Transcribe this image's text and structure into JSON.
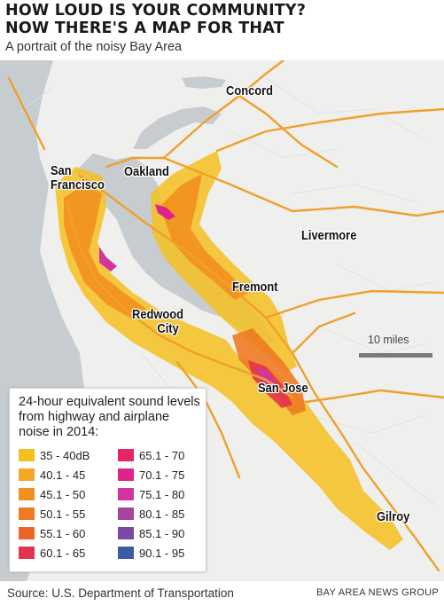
{
  "title_line1": "HOW LOUD IS YOUR COMMUNITY?",
  "title_line2": "NOW THERE'S A MAP FOR THAT",
  "subtitle": "A portrait of the noisy Bay Area",
  "cities": {
    "concord": "Concord",
    "san_francisco_1": "San",
    "san_francisco_2": "Francisco",
    "oakland": "Oakland",
    "livermore": "Livermore",
    "fremont": "Fremont",
    "redwood_city_1": "Redwood",
    "redwood_city_2": "City",
    "san_jose": "San Jose",
    "gilroy": "Gilroy"
  },
  "scale_label": "10 miles",
  "legend": {
    "title": "24-hour equivalent sound levels from highway and airplane noise in 2014:",
    "items": [
      {
        "label": "35 - 40dB",
        "color": "#f4c020"
      },
      {
        "label": "40.1 - 45",
        "color": "#f5a623"
      },
      {
        "label": "45.1 - 50",
        "color": "#f2901e"
      },
      {
        "label": "50.1 - 55",
        "color": "#ee7a24"
      },
      {
        "label": "55.1 - 60",
        "color": "#ec6428"
      },
      {
        "label": "60.1 - 65",
        "color": "#e2344a"
      },
      {
        "label": "65.1 - 70",
        "color": "#e5246a"
      },
      {
        "label": "70.1 - 75",
        "color": "#e0238a"
      },
      {
        "label": "75.1 - 80",
        "color": "#d3359f"
      },
      {
        "label": "80.1 - 85",
        "color": "#a2479d"
      },
      {
        "label": "85.1 - 90",
        "color": "#7b4aa3"
      },
      {
        "label": "90.1 - 95",
        "color": "#3c5aa8"
      }
    ]
  },
  "source": "Source: U.S. Department of Transportation",
  "credit": "BAY AREA NEWS GROUP"
}
